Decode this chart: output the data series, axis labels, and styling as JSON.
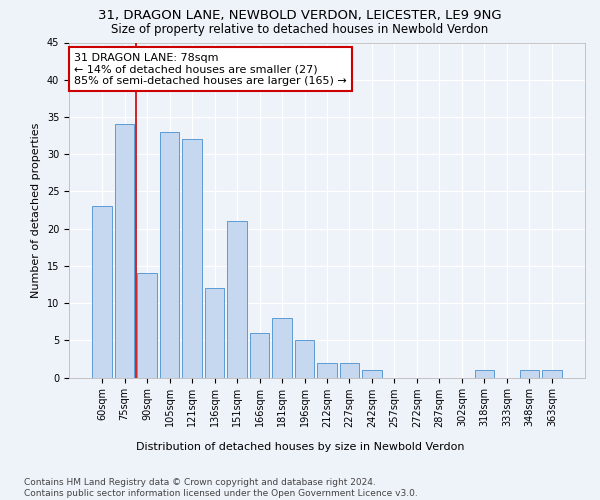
{
  "title": "31, DRAGON LANE, NEWBOLD VERDON, LEICESTER, LE9 9NG",
  "subtitle": "Size of property relative to detached houses in Newbold Verdon",
  "xlabel": "Distribution of detached houses by size in Newbold Verdon",
  "ylabel": "Number of detached properties",
  "categories": [
    "60sqm",
    "75sqm",
    "90sqm",
    "105sqm",
    "121sqm",
    "136sqm",
    "151sqm",
    "166sqm",
    "181sqm",
    "196sqm",
    "212sqm",
    "227sqm",
    "242sqm",
    "257sqm",
    "272sqm",
    "287sqm",
    "302sqm",
    "318sqm",
    "333sqm",
    "348sqm",
    "363sqm"
  ],
  "values": [
    23,
    34,
    14,
    33,
    32,
    12,
    21,
    6,
    8,
    5,
    2,
    2,
    1,
    0,
    0,
    0,
    0,
    1,
    0,
    1,
    1
  ],
  "bar_color": "#c5d8f0",
  "bar_edge_color": "#5b9bd5",
  "background_color": "#eef2f9",
  "grid_color": "#ffffff",
  "annotation_text_line1": "31 DRAGON LANE: 78sqm",
  "annotation_text_line2": "← 14% of detached houses are smaller (27)",
  "annotation_text_line3": "85% of semi-detached houses are larger (165) →",
  "annotation_box_facecolor": "#ffffff",
  "annotation_box_edge_color": "#cc0000",
  "vline_color": "#cc0000",
  "ylim": [
    0,
    45
  ],
  "yticks": [
    0,
    5,
    10,
    15,
    20,
    25,
    30,
    35,
    40,
    45
  ],
  "footer_line1": "Contains HM Land Registry data © Crown copyright and database right 2024.",
  "footer_line2": "Contains public sector information licensed under the Open Government Licence v3.0.",
  "title_fontsize": 9.5,
  "subtitle_fontsize": 8.5,
  "xlabel_fontsize": 8,
  "ylabel_fontsize": 8,
  "tick_fontsize": 7,
  "footer_fontsize": 6.5,
  "annotation_fontsize": 8
}
